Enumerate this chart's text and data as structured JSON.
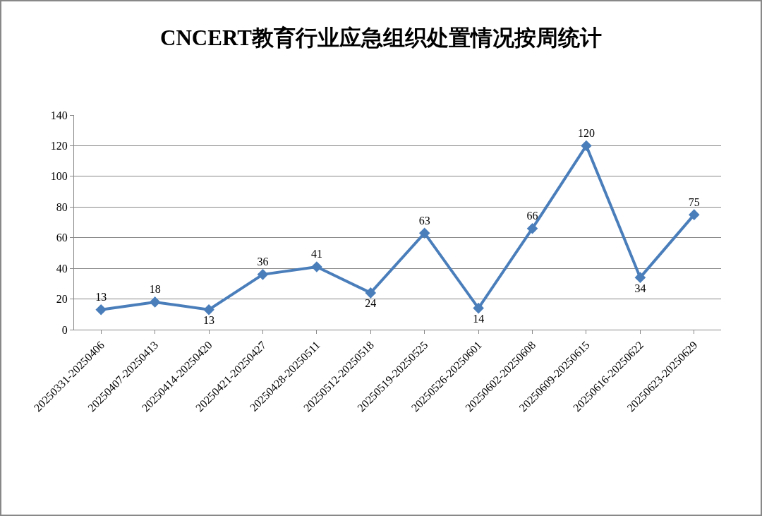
{
  "chart_data": {
    "type": "line",
    "title": "CNCERT教育行业应急组织处置情况按周统计",
    "categories": [
      "20250331-20250406",
      "20250407-20250413",
      "20250414-20250420",
      "20250421-20250427",
      "20250428-20250511",
      "20250512-20250518",
      "20250519-20250525",
      "20250526-20250601",
      "20250602-20250608",
      "20250609-20250615",
      "20250616-20250622",
      "20250623-20250629"
    ],
    "series": [
      {
        "color": "#4a7ebb",
        "values": [
          13,
          18,
          13,
          36,
          41,
          24,
          63,
          14,
          66,
          120,
          34,
          75
        ]
      }
    ],
    "ylim": [
      0,
      140
    ],
    "yticks": [
      0,
      20,
      40,
      60,
      80,
      100,
      120,
      140
    ],
    "grid": "y",
    "marker": "diamond",
    "line_style": "solid",
    "data_labels": true
  }
}
